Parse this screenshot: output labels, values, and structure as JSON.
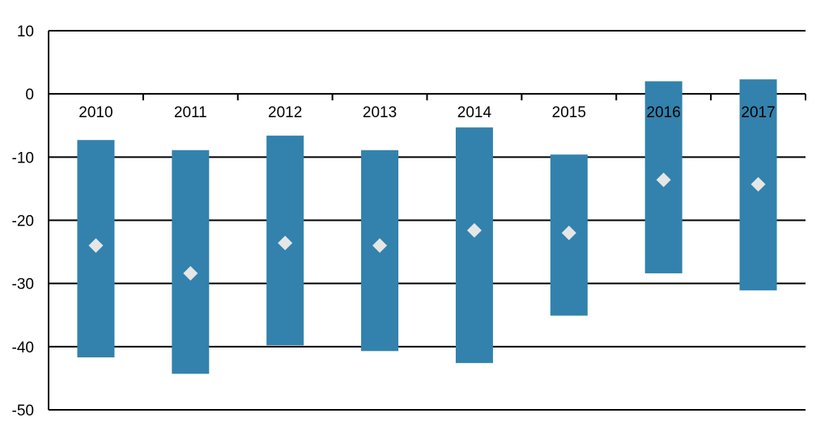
{
  "chart_data": {
    "type": "bar",
    "subtype": "floating-range-with-marker",
    "title": "",
    "xlabel": "",
    "ylabel": "",
    "categories": [
      "2010",
      "2011",
      "2012",
      "2013",
      "2014",
      "2015",
      "2016",
      "2017"
    ],
    "series": [
      {
        "kind": "range",
        "low": [
          -41.7,
          -44.3,
          -39.8,
          -40.7,
          -42.6,
          -35.1,
          -28.4,
          -31.1
        ],
        "high": [
          -7.3,
          -8.9,
          -6.6,
          -8.9,
          -5.3,
          -9.6,
          2.0,
          2.3
        ]
      },
      {
        "kind": "marker",
        "values": [
          -24.0,
          -28.4,
          -23.6,
          -24.0,
          -21.6,
          -22.0,
          -13.6,
          -14.3
        ]
      }
    ],
    "ylim": [
      -50,
      10
    ],
    "yticks": [
      10,
      0,
      -10,
      -20,
      -30,
      -40,
      -50
    ],
    "grid": true,
    "legend": "none",
    "colors": {
      "range": "#3282AD",
      "marker": "#E6E6E6",
      "axis": "#000000"
    }
  }
}
